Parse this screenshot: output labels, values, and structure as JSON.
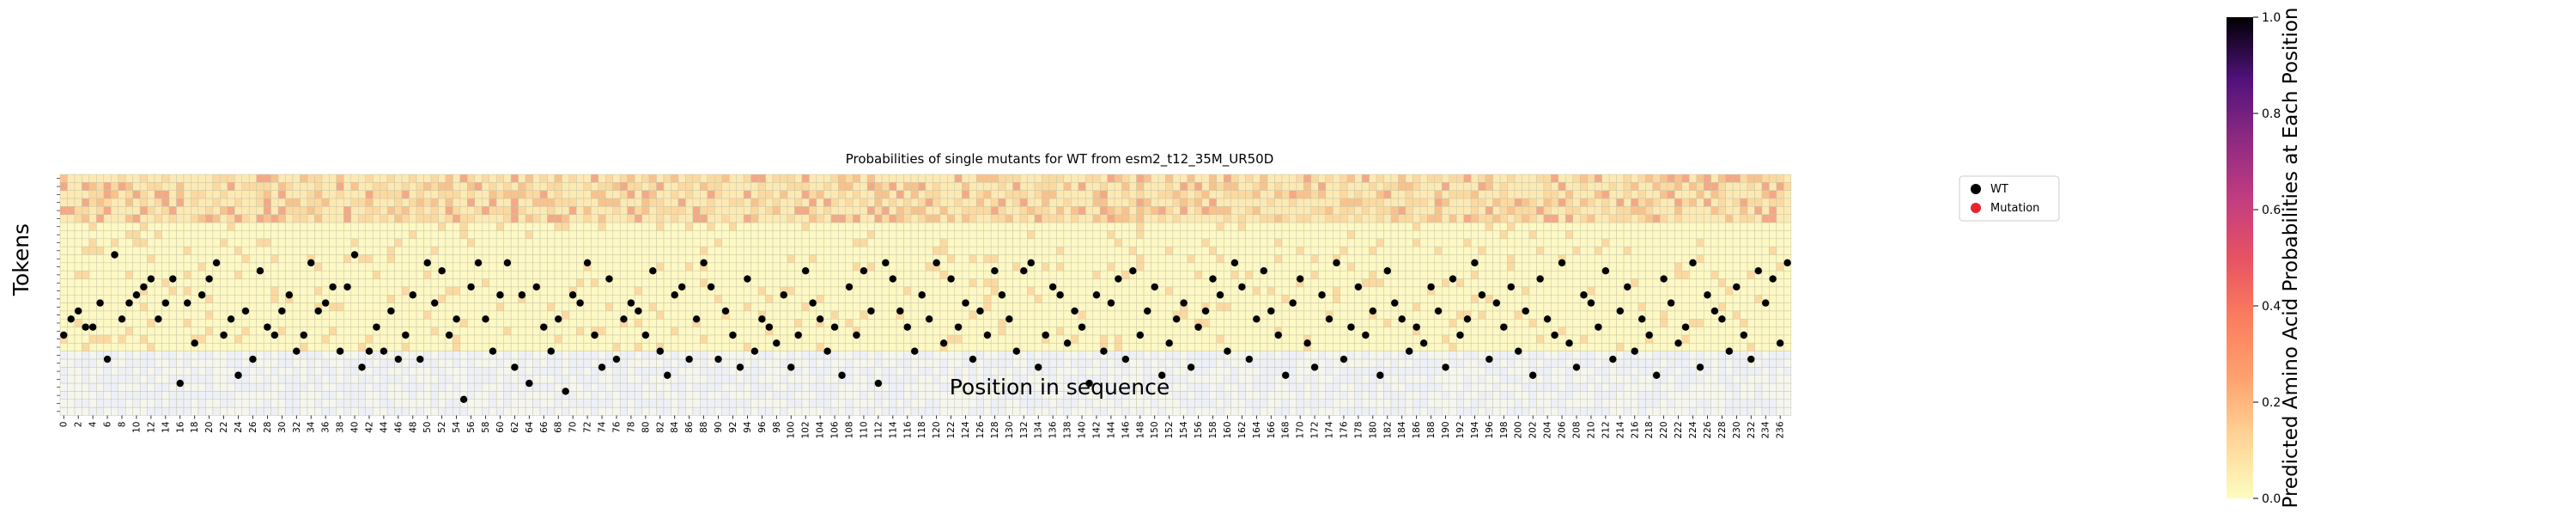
{
  "chart_data": {
    "type": "heatmap",
    "title": "Probabilities of single mutants for WT from esm2_t12_35M_UR50D",
    "xlabel": "Position in sequence",
    "ylabel": "Tokens",
    "x_tick_labels": [
      "0",
      "2",
      "4",
      "6",
      "8",
      "10",
      "12",
      "14",
      "16",
      "18",
      "20",
      "22",
      "24",
      "26",
      "28",
      "30",
      "32",
      "34",
      "36",
      "38",
      "40",
      "42",
      "44",
      "46",
      "48",
      "50",
      "52",
      "54",
      "56",
      "58",
      "60",
      "62",
      "64",
      "66",
      "68",
      "70",
      "72",
      "74",
      "76",
      "78",
      "80",
      "82",
      "84",
      "86",
      "88",
      "90",
      "92",
      "94",
      "96",
      "98",
      "100",
      "102",
      "104",
      "106",
      "108",
      "110",
      "112",
      "114",
      "116",
      "118",
      "120",
      "122",
      "124",
      "126",
      "128",
      "130",
      "132",
      "134",
      "136",
      "138",
      "140",
      "142",
      "144",
      "146",
      "148",
      "150",
      "152",
      "154",
      "156",
      "158",
      "160",
      "162",
      "164",
      "166",
      "168",
      "170",
      "172",
      "174",
      "176",
      "178",
      "180",
      "182",
      "184",
      "186",
      "188",
      "190",
      "192",
      "194",
      "196",
      "198",
      "200",
      "202",
      "204",
      "206",
      "208",
      "210",
      "212",
      "214",
      "216",
      "218",
      "220",
      "222",
      "224",
      "226",
      "228",
      "230",
      "232",
      "234",
      "236"
    ],
    "n_positions": 238,
    "n_tokens": 20,
    "wt_token_index": [
      20,
      18,
      17,
      19,
      19,
      16,
      23,
      10,
      18,
      16,
      15,
      14,
      13,
      18,
      16,
      13,
      26,
      16,
      21,
      15,
      13,
      11,
      20,
      18,
      25,
      17,
      23,
      12,
      19,
      20,
      17,
      15,
      22,
      20,
      11,
      17,
      16,
      14,
      22,
      14,
      10,
      24,
      22,
      19,
      22,
      17,
      23,
      20,
      15,
      23,
      11,
      16,
      12,
      20,
      18,
      28,
      14,
      11,
      18,
      22,
      15,
      11,
      24,
      15,
      26,
      14,
      19,
      22,
      18,
      27,
      15,
      16,
      11,
      20,
      24,
      13,
      23,
      18,
      16,
      17,
      20,
      12,
      22,
      25,
      15,
      14,
      23,
      18,
      11,
      14,
      23,
      17,
      20,
      24,
      13,
      22,
      18,
      19,
      21,
      15,
      24,
      20,
      12,
      16,
      18,
      22,
      19,
      25,
      14,
      20,
      12,
      17,
      26,
      11,
      13,
      17,
      19,
      22,
      15,
      18,
      11,
      21,
      13,
      19,
      16,
      23,
      17,
      20,
      12,
      15,
      18,
      22,
      12,
      11,
      24,
      20,
      14,
      15,
      21,
      17,
      19,
      26,
      15,
      22,
      16,
      13,
      23,
      12,
      20,
      17,
      14,
      25,
      21,
      18,
      16,
      24,
      19,
      17,
      13,
      15,
      22,
      11,
      14,
      23,
      18,
      12,
      17,
      20,
      25,
      16,
      13,
      21,
      24,
      15,
      18,
      11,
      23,
      19,
      14,
      20,
      17,
      25,
      12,
      16,
      18,
      22,
      19,
      21,
      14,
      17,
      24,
      13,
      20,
      18,
      11,
      15,
      23,
      16,
      19,
      14,
      22,
      17,
      25,
      13,
      18,
      20,
      11,
      21,
      24,
      15,
      16,
      19,
      12,
      23,
      17,
      14,
      22,
      18,
      20,
      25,
      13,
      16,
      21,
      19,
      11,
      24,
      15,
      17,
      18,
      22,
      14,
      20,
      23,
      12,
      16,
      13,
      21,
      11
    ],
    "clim": [
      0.0,
      1.0
    ],
    "colorbar": {
      "label": "Predicted Amino Acid Probabilities at Each Position",
      "ticks": [
        "0.0",
        "0.2",
        "0.4",
        "0.6",
        "0.8",
        "1.0"
      ]
    },
    "colormap": "magma_r",
    "legend": [
      {
        "label": "WT",
        "color": "#000000"
      },
      {
        "label": "Mutation",
        "color": "#e8242c"
      }
    ],
    "legend_position": "upper right",
    "grid": true
  }
}
